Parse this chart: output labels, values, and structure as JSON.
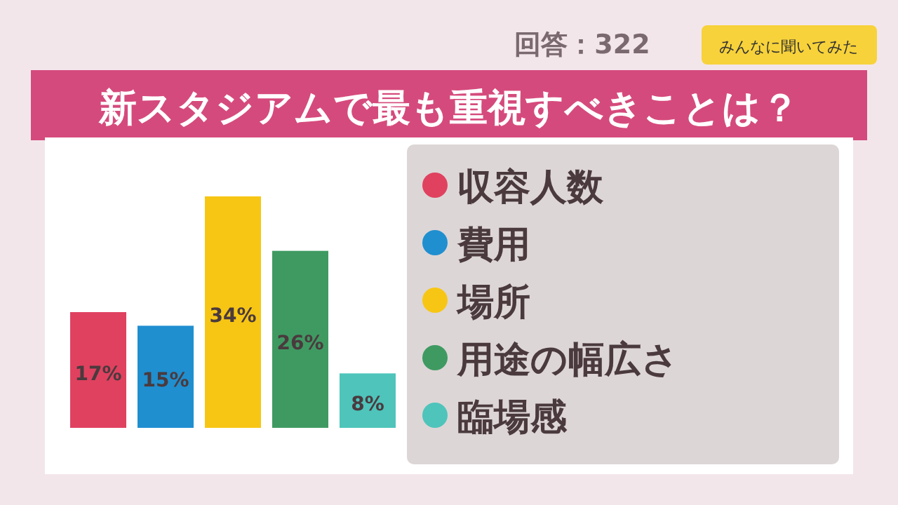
{
  "chart_data": {
    "type": "bar",
    "title": "新スタジアムで最も重視すべきことは？",
    "categories": [
      null,
      null,
      null,
      null,
      null
    ],
    "series": [
      {
        "name": "収容人数",
        "color": "#e0415f",
        "values": [
          17,
          null,
          null,
          null,
          null
        ],
        "value_labels": [
          "17%",
          null,
          null,
          null,
          null
        ]
      },
      {
        "name": "費用",
        "color": "#1f8fd0",
        "values": [
          null,
          15,
          null,
          null,
          null
        ],
        "value_labels": [
          null,
          "15%",
          null,
          null,
          null
        ]
      },
      {
        "name": "場所",
        "color": "#f7c614",
        "values": [
          null,
          null,
          34,
          null,
          null
        ],
        "value_labels": [
          null,
          null,
          "34%",
          null,
          null
        ]
      },
      {
        "name": "用途の幅広さ",
        "color": "#3f9a62",
        "values": [
          null,
          null,
          null,
          26,
          null
        ],
        "value_labels": [
          null,
          null,
          null,
          "26%",
          null
        ]
      },
      {
        "name": "臨場感",
        "color": "#4ec4bb",
        "values": [
          null,
          null,
          null,
          null,
          8
        ],
        "value_labels": [
          null,
          null,
          null,
          null,
          "8%"
        ]
      }
    ],
    "stacked": true,
    "legend": "right",
    "annotations": [
      "回答：322",
      "みんなに聞いてみた"
    ]
  }
}
